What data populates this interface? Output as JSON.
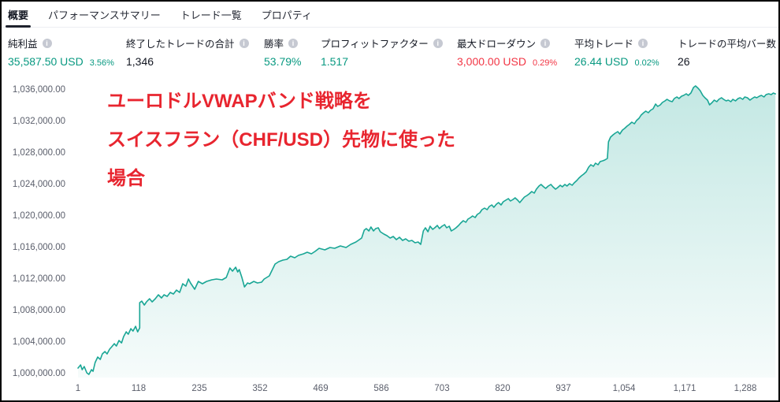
{
  "tabs": [
    {
      "label": "概要",
      "active": true
    },
    {
      "label": "パフォーマンスサマリー",
      "active": false
    },
    {
      "label": "トレード一覧",
      "active": false
    },
    {
      "label": "プロパティ",
      "active": false
    }
  ],
  "stats": [
    {
      "label": "純利益",
      "value": "35,587.50 USD",
      "pct": "3.56%",
      "tone": "pos"
    },
    {
      "label": "終了したトレードの合計",
      "value": "1,346",
      "pct": "",
      "tone": "dark"
    },
    {
      "label": "勝率",
      "value": "53.79%",
      "pct": "",
      "tone": "pos"
    },
    {
      "label": "プロフィットファクター",
      "value": "1.517",
      "pct": "",
      "tone": "pos"
    },
    {
      "label": "最大ドローダウン",
      "value": "3,000.00 USD",
      "pct": "0.29%",
      "tone": "neg"
    },
    {
      "label": "平均トレード",
      "value": "26.44 USD",
      "pct": "0.02%",
      "tone": "pos"
    },
    {
      "label": "トレードの平均バー数",
      "value": "26",
      "pct": "",
      "tone": "dark"
    }
  ],
  "annotation": {
    "lines": [
      "ユーロドルVWAPバンド戦略を",
      "スイスフラン（CHF/USD）先物に使った",
      "場合"
    ]
  },
  "colors": {
    "positive": "#089981",
    "negative": "#f23645",
    "annotation_red": "#e8252f",
    "curve_line": "#19a695",
    "curve_fill_top": "rgba(25,166,149,0.26)",
    "curve_fill_bottom": "rgba(25,166,149,0.04)"
  },
  "chart_data": {
    "type": "area",
    "title": "",
    "xlabel": "",
    "ylabel": "",
    "grid": false,
    "legend": false,
    "x_range": [
      1,
      1356
    ],
    "y_range": [
      1000000,
      1037700
    ],
    "x_ticks": {
      "values": [
        1,
        118,
        235,
        352,
        469,
        586,
        703,
        820,
        937,
        1054,
        1171,
        1288
      ],
      "labels": [
        "1",
        "118",
        "235",
        "352",
        "469",
        "586",
        "703",
        "820",
        "937",
        "1,054",
        "1,171",
        "1,288"
      ]
    },
    "y_ticks": {
      "values": [
        1036000,
        1032000,
        1028000,
        1024000,
        1020000,
        1016000,
        1012000,
        1008000,
        1004000,
        1000000
      ],
      "labels": [
        "1,036,000.00",
        "1,032,000.00",
        "1,028,000.00",
        "1,024,000.00",
        "1,020,000.00",
        "1,016,000.00",
        "1,012,000.00",
        "1,008,000.00",
        "1,004,000.00",
        "1,000,000.00"
      ]
    },
    "series": [
      {
        "name": "equity",
        "points": [
          [
            1,
            1000800
          ],
          [
            6,
            1001200
          ],
          [
            9,
            1000600
          ],
          [
            13,
            1001000
          ],
          [
            18,
            1000200
          ],
          [
            22,
            1000000
          ],
          [
            27,
            1000600
          ],
          [
            30,
            1000400
          ],
          [
            34,
            1001500
          ],
          [
            39,
            1002200
          ],
          [
            44,
            1001900
          ],
          [
            48,
            1002600
          ],
          [
            53,
            1002900
          ],
          [
            57,
            1002600
          ],
          [
            62,
            1003200
          ],
          [
            66,
            1003500
          ],
          [
            71,
            1003900
          ],
          [
            75,
            1003600
          ],
          [
            80,
            1004300
          ],
          [
            85,
            1004000
          ],
          [
            89,
            1004800
          ],
          [
            94,
            1005400
          ],
          [
            98,
            1005100
          ],
          [
            103,
            1005800
          ],
          [
            107,
            1005500
          ],
          [
            112,
            1006100
          ],
          [
            116,
            1005400
          ],
          [
            120,
            1005900
          ],
          [
            120,
            1009100
          ],
          [
            124,
            1009300
          ],
          [
            129,
            1008800
          ],
          [
            133,
            1009200
          ],
          [
            139,
            1009600
          ],
          [
            144,
            1009200
          ],
          [
            150,
            1009600
          ],
          [
            156,
            1010100
          ],
          [
            162,
            1009700
          ],
          [
            167,
            1010100
          ],
          [
            173,
            1009900
          ],
          [
            179,
            1010400
          ],
          [
            185,
            1010200
          ],
          [
            191,
            1010700
          ],
          [
            197,
            1010400
          ],
          [
            203,
            1011500
          ],
          [
            209,
            1011200
          ],
          [
            214,
            1012100
          ],
          [
            218,
            1011600
          ],
          [
            226,
            1010800
          ],
          [
            233,
            1011800
          ],
          [
            241,
            1011500
          ],
          [
            249,
            1011800
          ],
          [
            259,
            1012000
          ],
          [
            268,
            1012100
          ],
          [
            279,
            1012000
          ],
          [
            287,
            1012300
          ],
          [
            294,
            1013500
          ],
          [
            299,
            1013100
          ],
          [
            305,
            1013600
          ],
          [
            309,
            1013000
          ],
          [
            312,
            1013300
          ],
          [
            317,
            1012300
          ],
          [
            322,
            1011100
          ],
          [
            328,
            1011600
          ],
          [
            332,
            1011500
          ],
          [
            340,
            1011800
          ],
          [
            347,
            1011600
          ],
          [
            355,
            1011700
          ],
          [
            360,
            1012100
          ],
          [
            370,
            1012500
          ],
          [
            381,
            1014000
          ],
          [
            388,
            1014300
          ],
          [
            396,
            1014500
          ],
          [
            404,
            1014600
          ],
          [
            411,
            1015000
          ],
          [
            419,
            1014800
          ],
          [
            426,
            1015100
          ],
          [
            436,
            1015300
          ],
          [
            443,
            1015500
          ],
          [
            451,
            1015300
          ],
          [
            458,
            1015600
          ],
          [
            466,
            1016000
          ],
          [
            477,
            1015800
          ],
          [
            487,
            1016100
          ],
          [
            496,
            1016000
          ],
          [
            507,
            1016300
          ],
          [
            518,
            1016100
          ],
          [
            527,
            1016500
          ],
          [
            537,
            1016800
          ],
          [
            548,
            1017300
          ],
          [
            553,
            1018300
          ],
          [
            557,
            1018500
          ],
          [
            562,
            1018200
          ],
          [
            566,
            1018700
          ],
          [
            571,
            1018200
          ],
          [
            575,
            1018500
          ],
          [
            580,
            1018600
          ],
          [
            584,
            1018100
          ],
          [
            591,
            1017800
          ],
          [
            597,
            1017600
          ],
          [
            603,
            1017300
          ],
          [
            609,
            1017500
          ],
          [
            615,
            1017100
          ],
          [
            621,
            1017400
          ],
          [
            627,
            1017000
          ],
          [
            633,
            1017200
          ],
          [
            639,
            1016900
          ],
          [
            645,
            1017000
          ],
          [
            651,
            1016700
          ],
          [
            657,
            1016800
          ],
          [
            662,
            1016500
          ],
          [
            667,
            1018200
          ],
          [
            671,
            1018600
          ],
          [
            676,
            1018100
          ],
          [
            680,
            1018800
          ],
          [
            685,
            1018400
          ],
          [
            689,
            1018600
          ],
          [
            694,
            1018900
          ],
          [
            698,
            1018500
          ],
          [
            703,
            1018800
          ],
          [
            708,
            1019000
          ],
          [
            712,
            1018600
          ],
          [
            717,
            1018800
          ],
          [
            721,
            1018200
          ],
          [
            726,
            1018400
          ],
          [
            730,
            1018600
          ],
          [
            735,
            1018900
          ],
          [
            739,
            1019200
          ],
          [
            744,
            1019500
          ],
          [
            749,
            1019300
          ],
          [
            753,
            1019700
          ],
          [
            758,
            1019900
          ],
          [
            762,
            1020100
          ],
          [
            767,
            1019900
          ],
          [
            771,
            1020300
          ],
          [
            776,
            1020500
          ],
          [
            780,
            1020900
          ],
          [
            785,
            1021100
          ],
          [
            790,
            1020900
          ],
          [
            794,
            1021300
          ],
          [
            799,
            1021500
          ],
          [
            803,
            1021200
          ],
          [
            808,
            1021600
          ],
          [
            812,
            1021800
          ],
          [
            817,
            1021500
          ],
          [
            821,
            1021900
          ],
          [
            826,
            1022100
          ],
          [
            831,
            1022300
          ],
          [
            835,
            1022000
          ],
          [
            840,
            1022200
          ],
          [
            844,
            1022400
          ],
          [
            849,
            1022100
          ],
          [
            853,
            1021800
          ],
          [
            858,
            1022200
          ],
          [
            862,
            1022500
          ],
          [
            867,
            1022700
          ],
          [
            871,
            1022900
          ],
          [
            876,
            1023200
          ],
          [
            881,
            1023000
          ],
          [
            885,
            1023500
          ],
          [
            890,
            1023900
          ],
          [
            894,
            1024100
          ],
          [
            899,
            1023800
          ],
          [
            903,
            1023600
          ],
          [
            908,
            1023900
          ],
          [
            913,
            1024100
          ],
          [
            917,
            1023800
          ],
          [
            922,
            1023500
          ],
          [
            926,
            1023700
          ],
          [
            931,
            1024000
          ],
          [
            935,
            1023800
          ],
          [
            940,
            1024100
          ],
          [
            944,
            1023900
          ],
          [
            949,
            1024200
          ],
          [
            954,
            1024000
          ],
          [
            958,
            1024300
          ],
          [
            963,
            1024600
          ],
          [
            967,
            1024900
          ],
          [
            972,
            1025200
          ],
          [
            976,
            1025400
          ],
          [
            981,
            1025700
          ],
          [
            986,
            1026300
          ],
          [
            990,
            1026600
          ],
          [
            995,
            1026400
          ],
          [
            999,
            1026800
          ],
          [
            1004,
            1026600
          ],
          [
            1008,
            1027000
          ],
          [
            1013,
            1027100
          ],
          [
            1017,
            1027200
          ],
          [
            1022,
            1027400
          ],
          [
            1024,
            1029500
          ],
          [
            1028,
            1030100
          ],
          [
            1033,
            1030400
          ],
          [
            1037,
            1030600
          ],
          [
            1042,
            1030800
          ],
          [
            1046,
            1030500
          ],
          [
            1051,
            1031000
          ],
          [
            1055,
            1031200
          ],
          [
            1060,
            1031500
          ],
          [
            1064,
            1031700
          ],
          [
            1069,
            1032000
          ],
          [
            1074,
            1031800
          ],
          [
            1078,
            1032200
          ],
          [
            1083,
            1032500
          ],
          [
            1087,
            1032900
          ],
          [
            1092,
            1033200
          ],
          [
            1096,
            1033400
          ],
          [
            1101,
            1033200
          ],
          [
            1105,
            1033500
          ],
          [
            1110,
            1033700
          ],
          [
            1115,
            1034300
          ],
          [
            1119,
            1034000
          ],
          [
            1124,
            1034200
          ],
          [
            1128,
            1034500
          ],
          [
            1133,
            1034700
          ],
          [
            1137,
            1034900
          ],
          [
            1142,
            1034700
          ],
          [
            1147,
            1034600
          ],
          [
            1151,
            1035000
          ],
          [
            1156,
            1035200
          ],
          [
            1160,
            1035000
          ],
          [
            1165,
            1035300
          ],
          [
            1169,
            1035400
          ],
          [
            1174,
            1035600
          ],
          [
            1178,
            1035400
          ],
          [
            1183,
            1035700
          ],
          [
            1188,
            1036400
          ],
          [
            1192,
            1036600
          ],
          [
            1197,
            1036300
          ],
          [
            1201,
            1036000
          ],
          [
            1206,
            1035400
          ],
          [
            1210,
            1035100
          ],
          [
            1215,
            1034800
          ],
          [
            1219,
            1034200
          ],
          [
            1224,
            1034500
          ],
          [
            1228,
            1034800
          ],
          [
            1233,
            1034600
          ],
          [
            1237,
            1034900
          ],
          [
            1242,
            1035100
          ],
          [
            1246,
            1034900
          ],
          [
            1251,
            1034700
          ],
          [
            1255,
            1034800
          ],
          [
            1260,
            1034600
          ],
          [
            1264,
            1034900
          ],
          [
            1269,
            1034700
          ],
          [
            1274,
            1035000
          ],
          [
            1278,
            1035100
          ],
          [
            1283,
            1034900
          ],
          [
            1287,
            1035200
          ],
          [
            1292,
            1035100
          ],
          [
            1297,
            1034800
          ],
          [
            1301,
            1035000
          ],
          [
            1306,
            1035200
          ],
          [
            1310,
            1035100
          ],
          [
            1315,
            1035300
          ],
          [
            1319,
            1035400
          ],
          [
            1324,
            1035200
          ],
          [
            1328,
            1035500
          ],
          [
            1333,
            1035600
          ],
          [
            1338,
            1035500
          ],
          [
            1342,
            1035700
          ],
          [
            1346,
            1035588
          ]
        ]
      }
    ]
  }
}
